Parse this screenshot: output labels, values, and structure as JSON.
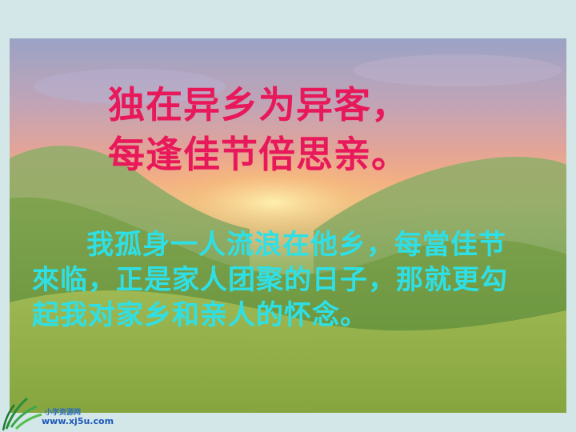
{
  "poem": {
    "line1": "独在异乡为异客，",
    "line2": "每逢佳节倍思亲。"
  },
  "explanation": "我孤身一人流浪在他乡，每當佳节來临，正是家人团聚的日子，那就更勾起我对家乡和亲人的怀念。",
  "watermark": {
    "site_name": "小学资源网",
    "url": "www.xj5u.com"
  },
  "colors": {
    "poem": "#e8195b",
    "explanation": "#2ee0e6",
    "background": "#d3e7e8"
  }
}
